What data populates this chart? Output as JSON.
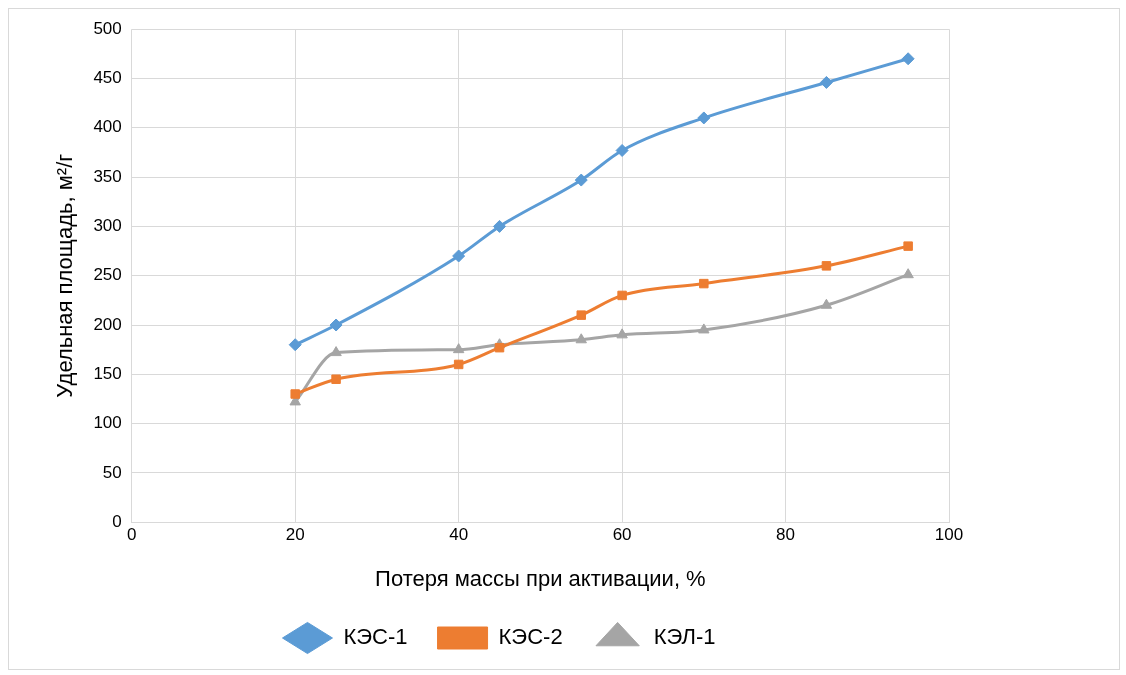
{
  "chart_data": {
    "type": "line",
    "xlabel": "Потеря массы при активации, %",
    "ylabel": "Удельная площадь, м²/г",
    "xlim": [
      0,
      100
    ],
    "xticks": [
      0,
      20,
      40,
      60,
      80,
      100
    ],
    "ylim": [
      0,
      500
    ],
    "yticks": [
      0,
      50,
      100,
      150,
      200,
      250,
      300,
      350,
      400,
      450,
      500
    ],
    "grid": true,
    "legend": "bottom",
    "line_style": "solid",
    "series": [
      {
        "name": "КЭС-1",
        "color": "#5b9bd5",
        "marker": "diamond",
        "x": [
          20,
          25,
          40,
          45,
          55,
          60,
          70,
          85,
          95
        ],
        "values": [
          180,
          200,
          270,
          300,
          347,
          377,
          410,
          446,
          470
        ]
      },
      {
        "name": "КЭС-2",
        "color": "#ed7d31",
        "marker": "square",
        "x": [
          20,
          25,
          40,
          45,
          55,
          60,
          70,
          85,
          95
        ],
        "values": [
          130,
          145,
          160,
          177,
          210,
          230,
          242,
          260,
          280
        ]
      },
      {
        "name": "КЭЛ-1",
        "color": "#a5a5a5",
        "marker": "triangle",
        "x": [
          20,
          25,
          40,
          45,
          55,
          60,
          70,
          85,
          95
        ],
        "values": [
          122,
          172,
          175,
          180,
          185,
          190,
          195,
          220,
          251
        ]
      }
    ]
  }
}
